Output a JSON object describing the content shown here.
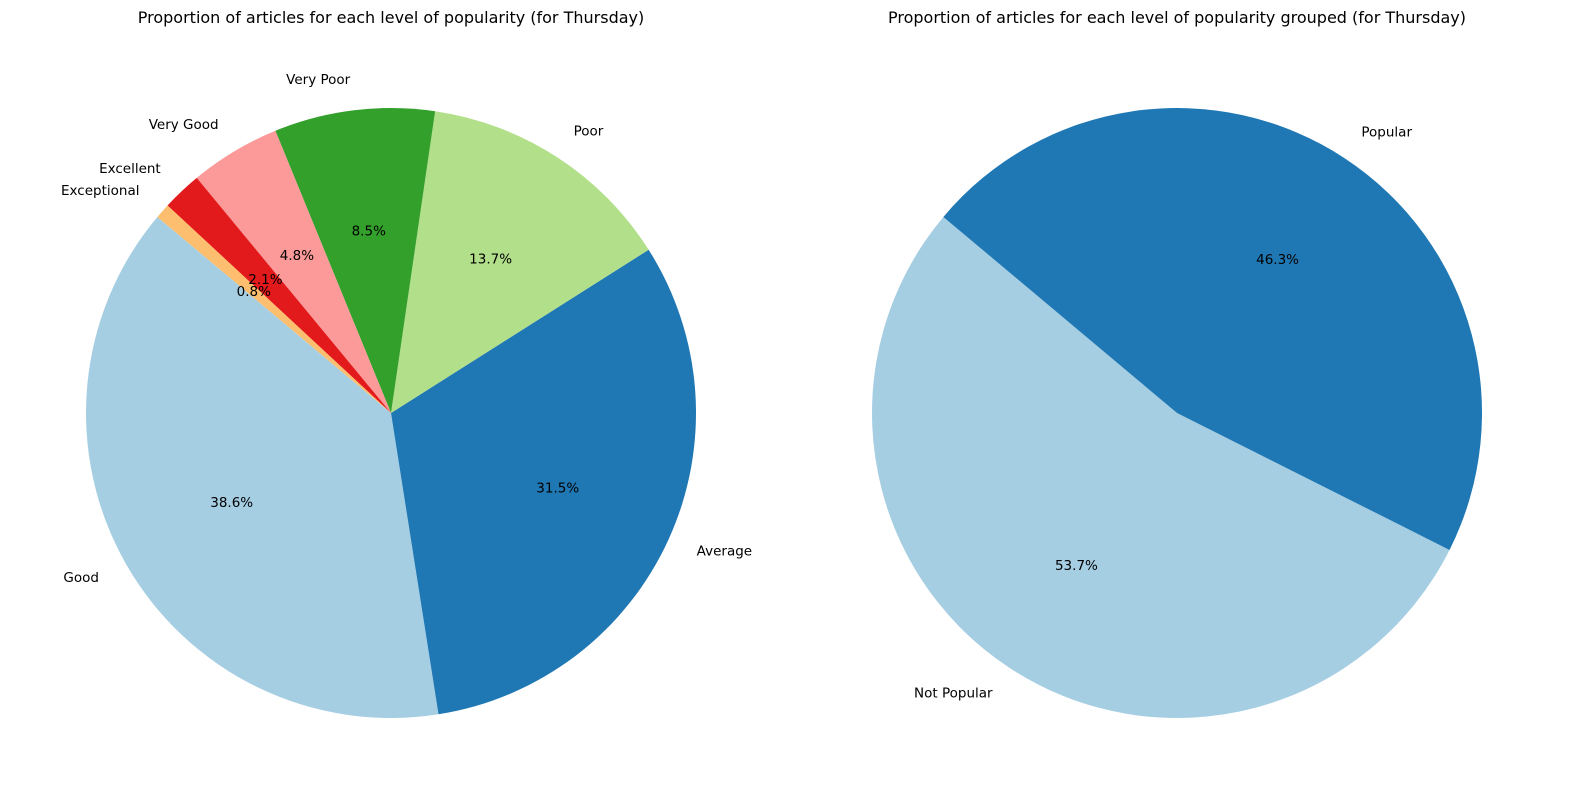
{
  "chart_data": [
    {
      "type": "pie",
      "title": "Proportion of articles for each level of popularity (for Thursday)",
      "slices": [
        {
          "label": "Good",
          "value": 38.6,
          "pct_label": "38.6%",
          "color": "#a6cee3"
        },
        {
          "label": "Average",
          "value": 31.5,
          "pct_label": "31.5%",
          "color": "#1f78b4"
        },
        {
          "label": "Poor",
          "value": 13.7,
          "pct_label": "13.7%",
          "color": "#b2df8a"
        },
        {
          "label": "Very Poor",
          "value": 8.5,
          "pct_label": "8.5%",
          "color": "#33a02c"
        },
        {
          "label": "Very Good",
          "value": 4.8,
          "pct_label": "4.8%",
          "color": "#fb9a99"
        },
        {
          "label": "Excellent",
          "value": 2.1,
          "pct_label": "2.1%",
          "color": "#e31a1c"
        },
        {
          "label": "Exceptional",
          "value": 0.8,
          "pct_label": "0.8%",
          "color": "#fdbf6f"
        }
      ],
      "start_angle_deg": 140,
      "direction": "counterclockwise"
    },
    {
      "type": "pie",
      "title": "Proportion of articles for each level of popularity grouped (for Thursday)",
      "slices": [
        {
          "label": "Not Popular",
          "value": 53.7,
          "pct_label": "53.7%",
          "color": "#a6cee3"
        },
        {
          "label": "Popular",
          "value": 46.3,
          "pct_label": "46.3%",
          "color": "#1f78b4"
        }
      ],
      "start_angle_deg": 140,
      "direction": "counterclockwise"
    }
  ]
}
